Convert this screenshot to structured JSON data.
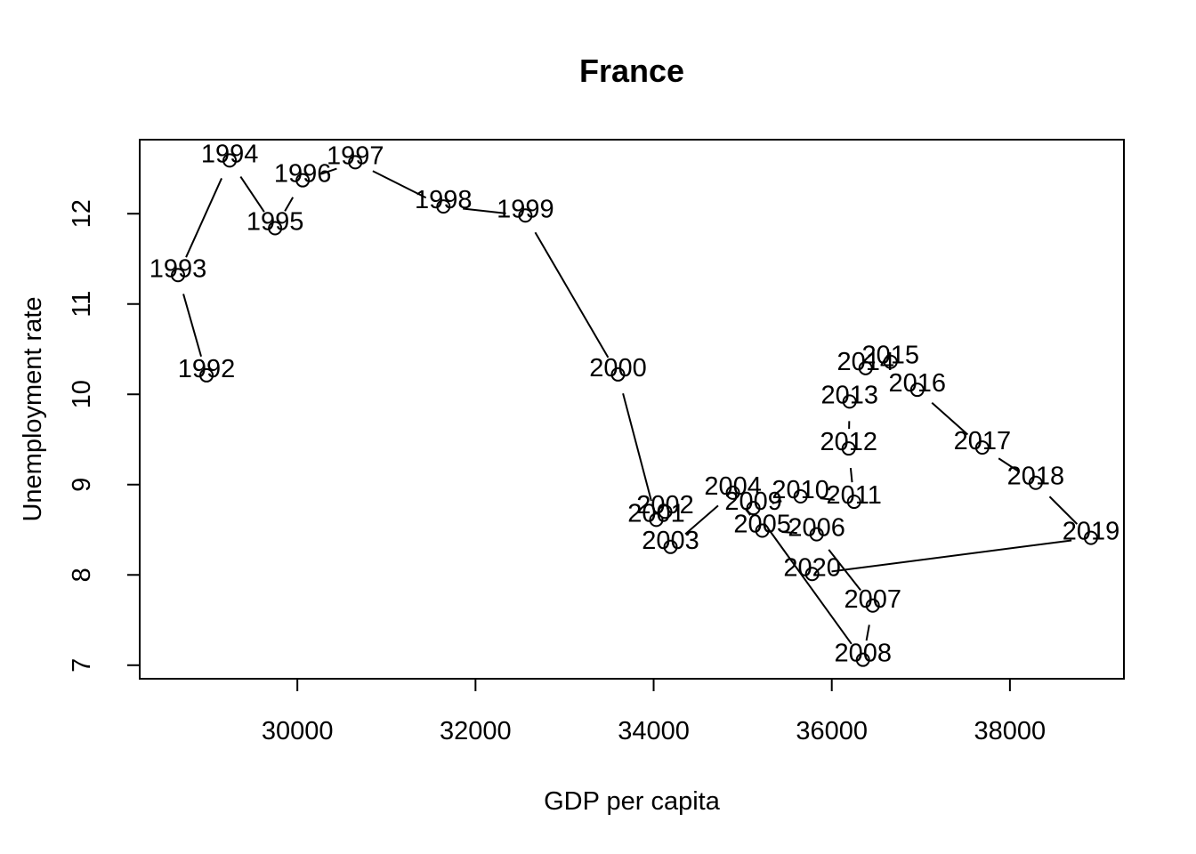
{
  "chart_data": {
    "type": "scatter",
    "title": "France",
    "xlabel": "GDP per capita",
    "ylabel": "Unemployment rate",
    "xlim": [
      28230,
      39280
    ],
    "ylim": [
      6.85,
      12.82
    ],
    "xticks": [
      30000,
      32000,
      34000,
      36000,
      38000
    ],
    "yticks": [
      7,
      8,
      9,
      10,
      11,
      12
    ],
    "connected": true,
    "marker": "open-circle",
    "points": [
      {
        "label": "1992",
        "x": 28980,
        "y": 10.21
      },
      {
        "label": "1993",
        "x": 28660,
        "y": 11.32
      },
      {
        "label": "1994",
        "x": 29240,
        "y": 12.59
      },
      {
        "label": "1995",
        "x": 29750,
        "y": 11.84
      },
      {
        "label": "1996",
        "x": 30060,
        "y": 12.37
      },
      {
        "label": "1997",
        "x": 30650,
        "y": 12.57
      },
      {
        "label": "1998",
        "x": 31640,
        "y": 12.08
      },
      {
        "label": "1999",
        "x": 32560,
        "y": 11.98
      },
      {
        "label": "2000",
        "x": 33600,
        "y": 10.22
      },
      {
        "label": "2001",
        "x": 34030,
        "y": 8.61
      },
      {
        "label": "2002",
        "x": 34130,
        "y": 8.7
      },
      {
        "label": "2003",
        "x": 34190,
        "y": 8.31
      },
      {
        "label": "2004",
        "x": 34890,
        "y": 8.91
      },
      {
        "label": "2005",
        "x": 35220,
        "y": 8.49
      },
      {
        "label": "2006",
        "x": 35830,
        "y": 8.45
      },
      {
        "label": "2007",
        "x": 36460,
        "y": 7.66
      },
      {
        "label": "2008",
        "x": 36350,
        "y": 7.06
      },
      {
        "label": "2009",
        "x": 35120,
        "y": 8.74
      },
      {
        "label": "2010",
        "x": 35650,
        "y": 8.87
      },
      {
        "label": "2011",
        "x": 36250,
        "y": 8.81
      },
      {
        "label": "2012",
        "x": 36190,
        "y": 9.4
      },
      {
        "label": "2013",
        "x": 36200,
        "y": 9.92
      },
      {
        "label": "2014",
        "x": 36380,
        "y": 10.29
      },
      {
        "label": "2015",
        "x": 36660,
        "y": 10.36
      },
      {
        "label": "2016",
        "x": 36960,
        "y": 10.05
      },
      {
        "label": "2017",
        "x": 37690,
        "y": 9.41
      },
      {
        "label": "2018",
        "x": 38290,
        "y": 9.02
      },
      {
        "label": "2019",
        "x": 38910,
        "y": 8.41
      },
      {
        "label": "2020",
        "x": 35780,
        "y": 8.01
      }
    ]
  }
}
